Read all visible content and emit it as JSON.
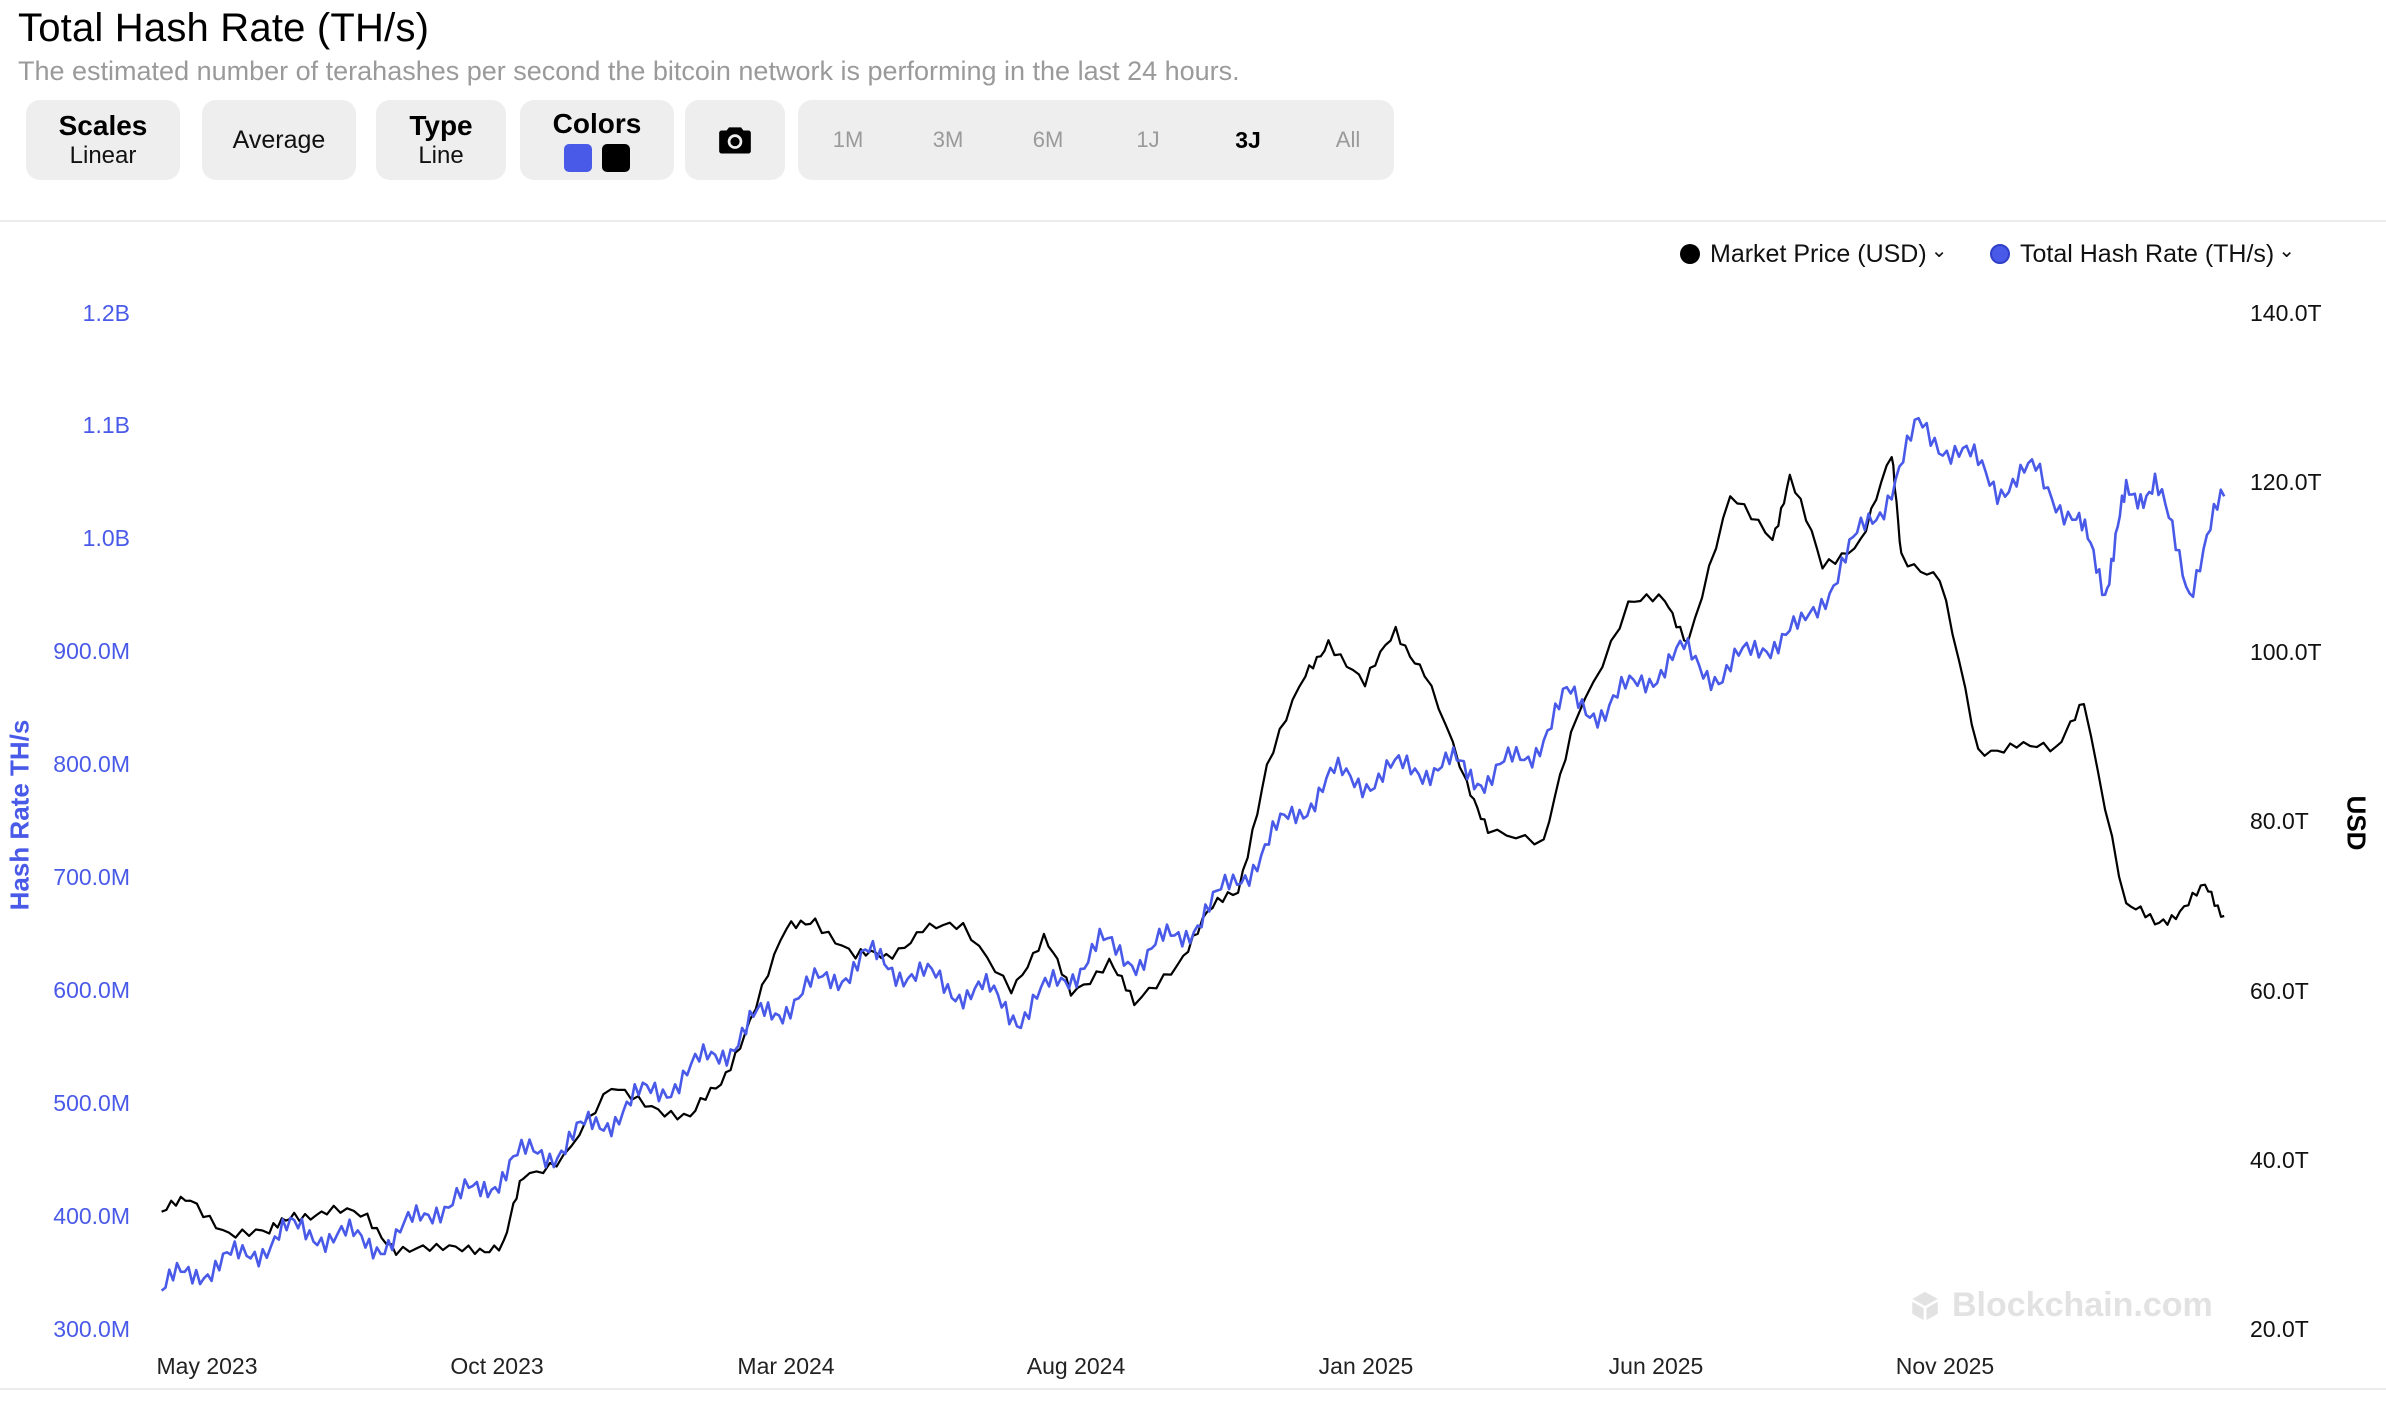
{
  "header": {
    "title": "Total Hash Rate (TH/s)",
    "subtitle": "The estimated number of terahashes per second the bitcoin network is performing in the last 24 hours."
  },
  "toolbar": {
    "scales": {
      "label": "Scales",
      "value": "Linear"
    },
    "average": {
      "label": "Average"
    },
    "type": {
      "label": "Type",
      "value": "Line"
    },
    "colors": {
      "label": "Colors",
      "swatches": [
        "#4a5ae8",
        "#000000"
      ]
    },
    "camera_icon": "camera-icon",
    "ranges": [
      "1M",
      "3M",
      "6M",
      "1J",
      "3J",
      "All"
    ],
    "active_range": "3J"
  },
  "watermark": {
    "icon": "blockchain-logo-icon",
    "text": "Blockchain.com"
  },
  "chart_data": {
    "type": "line",
    "title": "Total Hash Rate (TH/s)",
    "legend_position": "top-right",
    "grid": false,
    "x_ticks": [
      "May 2023",
      "Oct 2023",
      "Mar 2024",
      "Aug 2024",
      "Jan 2025",
      "Jun 2025",
      "Nov 2025"
    ],
    "left_axis": {
      "label": "Hash Rate TH/s",
      "ticks": [
        "300.0M",
        "400.0M",
        "500.0M",
        "600.0M",
        "700.0M",
        "800.0M",
        "900.0M",
        "1.0B",
        "1.1B",
        "1.2B"
      ],
      "range": [
        300000000,
        1200000000
      ]
    },
    "right_axis": {
      "label": "USD",
      "ticks": [
        "20.0T",
        "40.0T",
        "60.0T",
        "80.0T",
        "100.0T",
        "120.0T",
        "140.0T"
      ],
      "range": [
        20000000000000,
        140000000000000
      ]
    },
    "series": [
      {
        "name": "Market Price (USD)",
        "axis": "right",
        "color": "#000000",
        "points": [
          [
            "2023-04-20",
            34
          ],
          [
            "2023-05-05",
            35
          ],
          [
            "2023-05-25",
            32
          ],
          [
            "2023-06-15",
            31
          ],
          [
            "2023-06-28",
            34
          ],
          [
            "2023-07-15",
            34
          ],
          [
            "2023-08-05",
            33
          ],
          [
            "2023-08-20",
            30
          ],
          [
            "2023-09-10",
            29
          ],
          [
            "2023-09-30",
            30
          ],
          [
            "2023-10-15",
            30
          ],
          [
            "2023-10-25",
            38
          ],
          [
            "2023-11-15",
            41
          ],
          [
            "2023-12-10",
            48
          ],
          [
            "2023-12-31",
            47
          ],
          [
            "2024-01-20",
            45
          ],
          [
            "2024-02-05",
            49
          ],
          [
            "2024-02-20",
            57
          ],
          [
            "2024-03-10",
            67
          ],
          [
            "2024-03-25",
            69
          ],
          [
            "2024-04-15",
            64
          ],
          [
            "2024-05-01",
            64
          ],
          [
            "2024-05-20",
            68
          ],
          [
            "2024-06-10",
            67
          ],
          [
            "2024-07-05",
            61
          ],
          [
            "2024-07-22",
            66
          ],
          [
            "2024-08-05",
            60
          ],
          [
            "2024-08-25",
            64
          ],
          [
            "2024-09-07",
            58
          ],
          [
            "2024-09-30",
            64
          ],
          [
            "2024-10-15",
            69
          ],
          [
            "2024-10-31",
            72
          ],
          [
            "2024-11-15",
            87
          ],
          [
            "2024-12-05",
            97
          ],
          [
            "2024-12-17",
            102
          ],
          [
            "2025-01-05",
            96
          ],
          [
            "2025-01-21",
            103
          ],
          [
            "2025-02-05",
            98
          ],
          [
            "2025-02-27",
            84
          ],
          [
            "2025-03-10",
            80
          ],
          [
            "2025-04-08",
            77
          ],
          [
            "2025-04-25",
            93
          ],
          [
            "2025-05-22",
            106
          ],
          [
            "2025-06-10",
            106
          ],
          [
            "2025-06-22",
            102
          ],
          [
            "2025-07-14",
            118
          ],
          [
            "2025-08-05",
            114
          ],
          [
            "2025-08-14",
            121
          ],
          [
            "2025-08-31",
            110
          ],
          [
            "2025-09-20",
            114
          ],
          [
            "2025-10-06",
            123
          ],
          [
            "2025-10-11",
            112
          ],
          [
            "2025-10-31",
            109
          ],
          [
            "2025-11-20",
            88
          ],
          [
            "2025-12-10",
            90
          ],
          [
            "2025-12-31",
            88
          ],
          [
            "2026-01-14",
            95
          ],
          [
            "2026-02-05",
            70
          ],
          [
            "2026-02-20",
            68
          ],
          [
            "2026-03-05",
            70
          ],
          [
            "2026-03-18",
            72
          ],
          [
            "2026-03-28",
            69
          ]
        ]
      },
      {
        "name": "Total Hash Rate (TH/s)",
        "axis": "left",
        "color": "#4a5ae8",
        "points": [
          [
            "2023-04-20",
            335
          ],
          [
            "2023-05-10",
            355
          ],
          [
            "2023-05-30",
            362
          ],
          [
            "2023-06-20",
            385
          ],
          [
            "2023-07-10",
            388
          ],
          [
            "2023-07-31",
            378
          ],
          [
            "2023-08-20",
            380
          ],
          [
            "2023-09-10",
            412
          ],
          [
            "2023-10-01",
            420
          ],
          [
            "2023-10-20",
            450
          ],
          [
            "2023-11-10",
            460
          ],
          [
            "2023-11-30",
            480
          ],
          [
            "2023-12-20",
            500
          ],
          [
            "2024-01-10",
            520
          ],
          [
            "2024-01-31",
            540
          ],
          [
            "2024-02-20",
            570
          ],
          [
            "2024-03-10",
            590
          ],
          [
            "2024-03-31",
            610
          ],
          [
            "2024-04-20",
            630
          ],
          [
            "2024-05-10",
            620
          ],
          [
            "2024-05-31",
            605
          ],
          [
            "2024-06-20",
            600
          ],
          [
            "2024-07-10",
            580
          ],
          [
            "2024-07-31",
            610
          ],
          [
            "2024-08-20",
            640
          ],
          [
            "2024-09-10",
            630
          ],
          [
            "2024-09-30",
            650
          ],
          [
            "2024-10-20",
            680
          ],
          [
            "2024-11-10",
            720
          ],
          [
            "2024-11-30",
            760
          ],
          [
            "2024-12-20",
            790
          ],
          [
            "2025-01-10",
            790
          ],
          [
            "2025-01-31",
            800
          ],
          [
            "2025-02-20",
            800
          ],
          [
            "2025-03-10",
            790
          ],
          [
            "2025-03-31",
            810
          ],
          [
            "2025-04-20",
            860
          ],
          [
            "2025-05-10",
            850
          ],
          [
            "2025-05-31",
            880
          ],
          [
            "2025-06-20",
            900
          ],
          [
            "2025-07-10",
            880
          ],
          [
            "2025-07-31",
            910
          ],
          [
            "2025-08-20",
            920
          ],
          [
            "2025-09-10",
            980
          ],
          [
            "2025-09-30",
            1030
          ],
          [
            "2025-10-20",
            1100
          ],
          [
            "2025-11-10",
            1080
          ],
          [
            "2025-11-30",
            1050
          ],
          [
            "2025-12-20",
            1060
          ],
          [
            "2026-01-10",
            1020
          ],
          [
            "2026-01-25",
            960
          ],
          [
            "2026-02-05",
            1040
          ],
          [
            "2026-02-20",
            1050
          ],
          [
            "2026-03-10",
            960
          ],
          [
            "2026-03-28",
            1040
          ]
        ]
      }
    ]
  }
}
